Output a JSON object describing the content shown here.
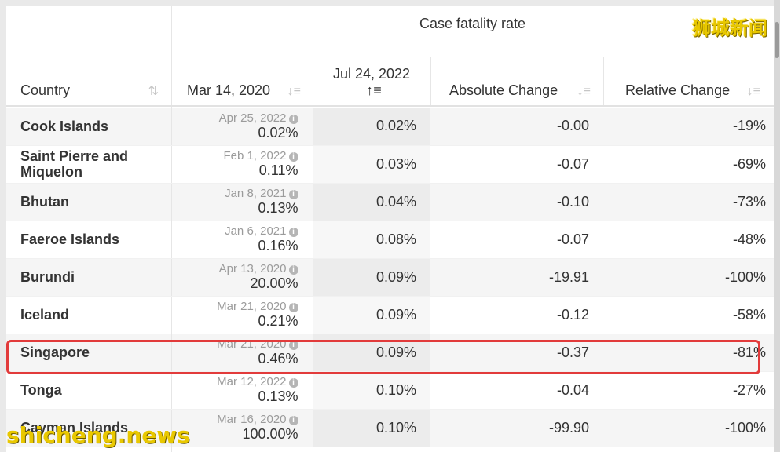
{
  "header": {
    "group_title": "Case fatality rate",
    "columns": {
      "country": "Country",
      "mar": "Mar 14, 2020",
      "jul_line1": "Jul 24, 2022",
      "abs": "Absolute Change",
      "rel": "Relative Change"
    },
    "icons": {
      "sort_alpha": "⇅",
      "sort_default": "↓≡",
      "sort_active": "↑≡"
    }
  },
  "rows": [
    {
      "country": "Cook Islands",
      "mar_date": "Apr 25, 2022",
      "mar_value": "0.02%",
      "jul": "0.02%",
      "abs": "-0.00",
      "rel": "-19%"
    },
    {
      "country": "Saint Pierre and Miquelon",
      "mar_date": "Feb 1, 2022",
      "mar_value": "0.11%",
      "jul": "0.03%",
      "abs": "-0.07",
      "rel": "-69%"
    },
    {
      "country": "Bhutan",
      "mar_date": "Jan 8, 2021",
      "mar_value": "0.13%",
      "jul": "0.04%",
      "abs": "-0.10",
      "rel": "-73%"
    },
    {
      "country": "Faeroe Islands",
      "mar_date": "Jan 6, 2021",
      "mar_value": "0.16%",
      "jul": "0.08%",
      "abs": "-0.07",
      "rel": "-48%"
    },
    {
      "country": "Burundi",
      "mar_date": "Apr 13, 2020",
      "mar_value": "20.00%",
      "jul": "0.09%",
      "abs": "-19.91",
      "rel": "-100%"
    },
    {
      "country": "Iceland",
      "mar_date": "Mar 21, 2020",
      "mar_value": "0.21%",
      "jul": "0.09%",
      "abs": "-0.12",
      "rel": "-58%"
    },
    {
      "country": "Singapore",
      "mar_date": "Mar 21, 2020",
      "mar_value": "0.46%",
      "jul": "0.09%",
      "abs": "-0.37",
      "rel": "-81%"
    },
    {
      "country": "Tonga",
      "mar_date": "Mar 12, 2022",
      "mar_value": "0.13%",
      "jul": "0.10%",
      "abs": "-0.04",
      "rel": "-27%"
    },
    {
      "country": "Cayman Islands",
      "mar_date": "Mar 16, 2020",
      "mar_value": "100.00%",
      "jul": "0.10%",
      "abs": "-99.90",
      "rel": "-100%"
    }
  ],
  "watermarks": {
    "top": "狮城新闻",
    "bottom": "shicheng.news"
  },
  "colors": {
    "highlight": "#e23b3b",
    "watermark": "#e9c800"
  }
}
